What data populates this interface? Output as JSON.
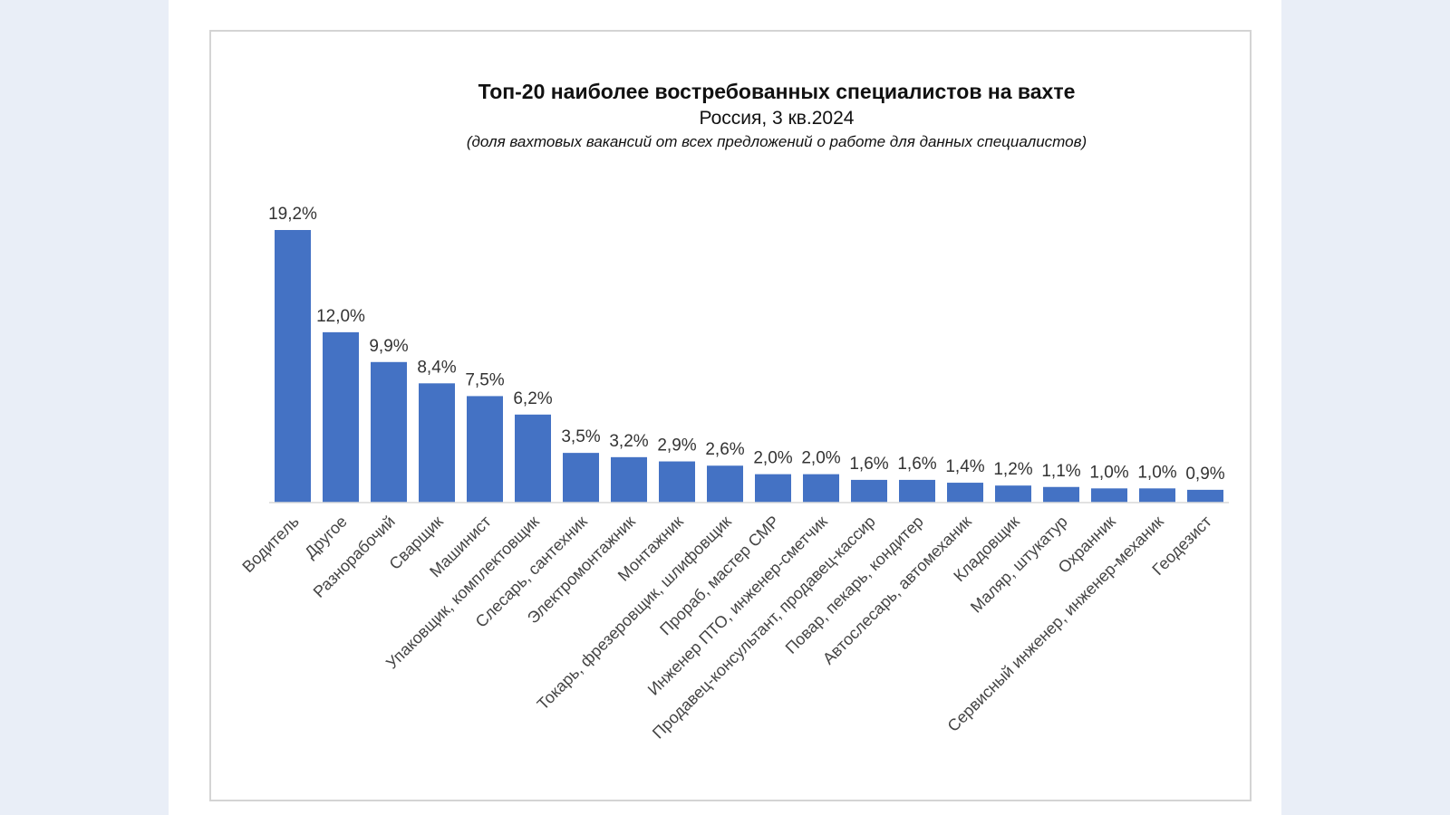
{
  "chart_data": {
    "type": "bar",
    "title": "Топ-20 наиболее востребованных специалистов на вахте",
    "subtitle": "Россия, 3 кв.2024",
    "note": "(доля вахтовых вакансий от всех предложений о работе для данных специалистов)",
    "categories": [
      "Водитель",
      "Другое",
      "Разнорабочий",
      "Сварщик",
      "Машинист",
      "Упаковщик, комплектовщик",
      "Слесарь, сантехник",
      "Электромонтажник",
      "Монтажник",
      "Токарь, фрезеровщик, шлифовщик",
      "Прораб, мастер СМР",
      "Инженер ПТО, инженер-сметчик",
      "Продавец-консультант, продавец-кассир",
      "Повар, пекарь, кондитер",
      "Автослесарь, автомеханик",
      "Кладовщик",
      "Маляр, штукатур",
      "Охранник",
      "Сервисный инженер, инженер-механик",
      "Геодезист"
    ],
    "values": [
      19.2,
      12.0,
      9.9,
      8.4,
      7.5,
      6.2,
      3.5,
      3.2,
      2.9,
      2.6,
      2.0,
      2.0,
      1.6,
      1.6,
      1.4,
      1.2,
      1.1,
      1.0,
      1.0,
      0.9
    ],
    "value_labels": [
      "19,2%",
      "12,0%",
      "9,9%",
      "8,4%",
      "7,5%",
      "6,2%",
      "3,5%",
      "3,2%",
      "2,9%",
      "2,6%",
      "2,0%",
      "2,0%",
      "1,6%",
      "1,6%",
      "1,4%",
      "1,2%",
      "1,1%",
      "1,0%",
      "1,0%",
      "0,9%"
    ],
    "bar_color": "#4472c4",
    "grid": false,
    "legend": "none",
    "ylim": [
      0,
      20
    ]
  }
}
